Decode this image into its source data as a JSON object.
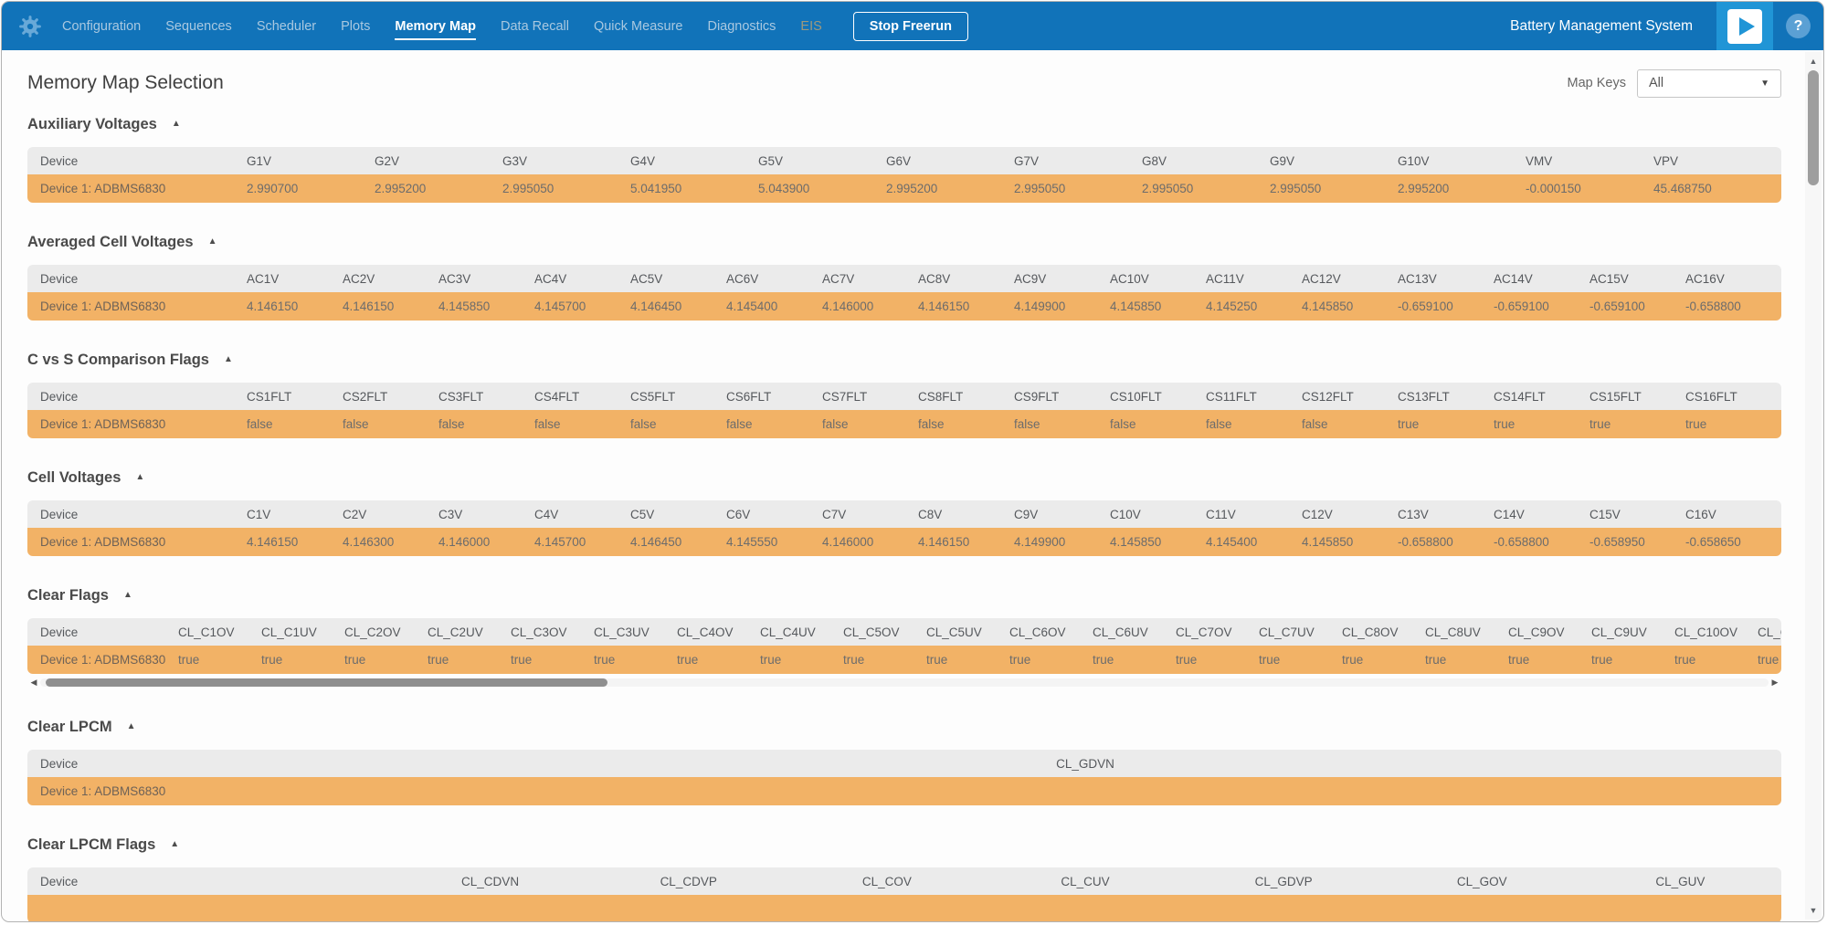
{
  "colors": {
    "nav_blue": "#1173b9",
    "tile_blue": "#2095d6",
    "row_orange": "#f2b266",
    "header_gray": "#ebebeb"
  },
  "icons": {
    "gear": "gear",
    "play": "play-triangle",
    "help": "?",
    "collapse": "▲",
    "dropdown_caret": "▼",
    "scroll_left": "◀",
    "scroll_right": "▶",
    "scroll_up": "▲",
    "scroll_down": "▼"
  },
  "nav": {
    "brand": "Battery Management System",
    "stop_button_label": "Stop Freerun",
    "tabs": [
      {
        "label": "Configuration",
        "active": false,
        "disabled": false
      },
      {
        "label": "Sequences",
        "active": false,
        "disabled": false
      },
      {
        "label": "Scheduler",
        "active": false,
        "disabled": false
      },
      {
        "label": "Plots",
        "active": false,
        "disabled": false
      },
      {
        "label": "Memory Map",
        "active": true,
        "disabled": false
      },
      {
        "label": "Data Recall",
        "active": false,
        "disabled": false
      },
      {
        "label": "Quick Measure",
        "active": false,
        "disabled": false
      },
      {
        "label": "Diagnostics",
        "active": false,
        "disabled": false
      },
      {
        "label": "EIS",
        "active": false,
        "disabled": true
      }
    ]
  },
  "page": {
    "title": "Memory Map Selection",
    "map_keys_label": "Map Keys",
    "map_keys_value": "All"
  },
  "sections": [
    {
      "title": "Auxiliary Voltages",
      "device_col": "Device",
      "columns": [
        "G1V",
        "G2V",
        "G3V",
        "G4V",
        "G5V",
        "G6V",
        "G7V",
        "G8V",
        "G9V",
        "G10V",
        "VMV",
        "VPV"
      ],
      "row": {
        "device": "Device 1: ADBMS6830",
        "values": [
          "2.990700",
          "2.995200",
          "2.995050",
          "5.041950",
          "5.043900",
          "2.995200",
          "2.995050",
          "2.995050",
          "2.995050",
          "2.995200",
          "-0.000150",
          "45.468750"
        ]
      }
    },
    {
      "title": "Averaged Cell Voltages",
      "device_col": "Device",
      "columns": [
        "AC1V",
        "AC2V",
        "AC3V",
        "AC4V",
        "AC5V",
        "AC6V",
        "AC7V",
        "AC8V",
        "AC9V",
        "AC10V",
        "AC11V",
        "AC12V",
        "AC13V",
        "AC14V",
        "AC15V",
        "AC16V"
      ],
      "row": {
        "device": "Device 1: ADBMS6830",
        "values": [
          "4.146150",
          "4.146150",
          "4.145850",
          "4.145700",
          "4.146450",
          "4.145400",
          "4.146000",
          "4.146150",
          "4.149900",
          "4.145850",
          "4.145250",
          "4.145850",
          "-0.659100",
          "-0.659100",
          "-0.659100",
          "-0.658800"
        ]
      }
    },
    {
      "title": "C vs S Comparison Flags",
      "device_col": "Device",
      "columns": [
        "CS1FLT",
        "CS2FLT",
        "CS3FLT",
        "CS4FLT",
        "CS5FLT",
        "CS6FLT",
        "CS7FLT",
        "CS8FLT",
        "CS9FLT",
        "CS10FLT",
        "CS11FLT",
        "CS12FLT",
        "CS13FLT",
        "CS14FLT",
        "CS15FLT",
        "CS16FLT"
      ],
      "row": {
        "device": "Device 1: ADBMS6830",
        "values": [
          "false",
          "false",
          "false",
          "false",
          "false",
          "false",
          "false",
          "false",
          "false",
          "false",
          "false",
          "false",
          "true",
          "true",
          "true",
          "true"
        ]
      }
    },
    {
      "title": "Cell Voltages",
      "device_col": "Device",
      "columns": [
        "C1V",
        "C2V",
        "C3V",
        "C4V",
        "C5V",
        "C6V",
        "C7V",
        "C8V",
        "C9V",
        "C10V",
        "C11V",
        "C12V",
        "C13V",
        "C14V",
        "C15V",
        "C16V"
      ],
      "row": {
        "device": "Device 1: ADBMS6830",
        "values": [
          "4.146150",
          "4.146300",
          "4.146000",
          "4.145700",
          "4.146450",
          "4.145550",
          "4.146000",
          "4.146150",
          "4.149900",
          "4.145850",
          "4.145400",
          "4.145850",
          "-0.658800",
          "-0.658800",
          "-0.658950",
          "-0.658650"
        ]
      }
    },
    {
      "title": "Clear Flags",
      "device_col": "Device",
      "scroll": true,
      "columns": [
        "CL_C1OV",
        "CL_C1UV",
        "CL_C2OV",
        "CL_C2UV",
        "CL_C3OV",
        "CL_C3UV",
        "CL_C4OV",
        "CL_C4UV",
        "CL_C5OV",
        "CL_C5UV",
        "CL_C6OV",
        "CL_C6UV",
        "CL_C7OV",
        "CL_C7UV",
        "CL_C8OV",
        "CL_C8UV",
        "CL_C9OV",
        "CL_C9UV",
        "CL_C10OV",
        "CL_C10UV",
        "CL"
      ],
      "row": {
        "device": "Device 1: ADBMS6830",
        "values": [
          "true",
          "true",
          "true",
          "true",
          "true",
          "true",
          "true",
          "true",
          "true",
          "true",
          "true",
          "true",
          "true",
          "true",
          "true",
          "true",
          "true",
          "true",
          "true",
          "true",
          "tru"
        ]
      }
    },
    {
      "title": "Clear LPCM",
      "device_col": "Device",
      "center": true,
      "columns": [
        "CL_GDVN"
      ],
      "row": {
        "device": "Device 1: ADBMS6830",
        "values": [
          ""
        ]
      }
    },
    {
      "title": "Clear LPCM Flags",
      "device_col": "Device",
      "center": true,
      "columns": [
        "CL_CDVN",
        "CL_CDVP",
        "CL_COV",
        "CL_CUV",
        "CL_GDVP",
        "CL_GOV",
        "CL_GUV"
      ],
      "row": {
        "device": "",
        "values": [
          "",
          "",
          "",
          "",
          "",
          "",
          ""
        ]
      }
    }
  ]
}
